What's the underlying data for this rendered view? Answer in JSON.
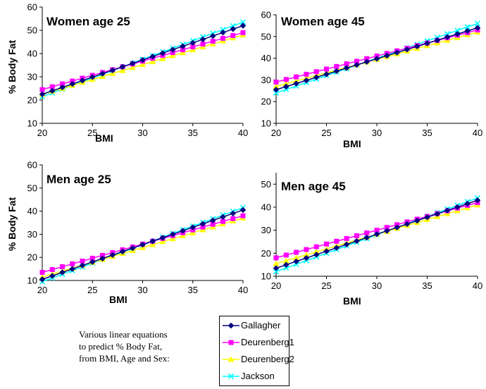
{
  "chart_data": {
    "type": "line",
    "ylabel": "% Body Fat",
    "xlabel": "BMI",
    "series_meta": [
      {
        "name": "Gallagher",
        "color": "#000080",
        "marker": "diamond"
      },
      {
        "name": "Deurenberg1",
        "color": "#ff00ff",
        "marker": "square"
      },
      {
        "name": "Deurenberg2",
        "color": "#ffff00",
        "marker": "triangle"
      },
      {
        "name": "Jackson",
        "color": "#00ffff",
        "marker": "x"
      }
    ],
    "legend": {
      "placement": "bottom-center"
    },
    "grid": false,
    "panels": [
      {
        "title": "Women age 25",
        "xlabel": "BMI",
        "ylabel": "% Body Fat",
        "xlim": [
          20,
          40
        ],
        "ylim": [
          10,
          60
        ],
        "xticks": [
          20,
          25,
          30,
          35,
          40
        ],
        "yticks": [
          10,
          20,
          30,
          40,
          50,
          60
        ],
        "series": [
          {
            "name": "Gallagher",
            "x": [
              20,
              40
            ],
            "y": [
              22.5,
              52
            ]
          },
          {
            "name": "Deurenberg1",
            "x": [
              20,
              40
            ],
            "y": [
              24.5,
              49
            ]
          },
          {
            "name": "Deurenberg2",
            "x": [
              20,
              40
            ],
            "y": [
              22.5,
              48
            ]
          },
          {
            "name": "Jackson",
            "x": [
              20,
              40
            ],
            "y": [
              21.5,
              53.5
            ]
          }
        ]
      },
      {
        "title": "Women age 45",
        "xlabel": "BMI",
        "ylabel": "",
        "xlim": [
          20,
          40
        ],
        "ylim": [
          10,
          60
        ],
        "xticks": [
          20,
          25,
          30,
          35,
          40
        ],
        "yticks": [
          10,
          20,
          30,
          40,
          50,
          60
        ],
        "series": [
          {
            "name": "Gallagher",
            "x": [
              20,
              40
            ],
            "y": [
              25.5,
              54
            ]
          },
          {
            "name": "Deurenberg1",
            "x": [
              20,
              40
            ],
            "y": [
              29,
              53
            ]
          },
          {
            "name": "Deurenberg2",
            "x": [
              20,
              40
            ],
            "y": [
              27,
              52
            ]
          },
          {
            "name": "Jackson",
            "x": [
              20,
              40
            ],
            "y": [
              24,
              56
            ]
          }
        ]
      },
      {
        "title": "Men age 25",
        "xlabel": "BMI",
        "ylabel": "% Body Fat",
        "xlim": [
          20,
          40
        ],
        "ylim": [
          10,
          60
        ],
        "xticks": [
          20,
          25,
          30,
          35,
          40
        ],
        "yticks": [
          10,
          20,
          30,
          40,
          50,
          60
        ],
        "series": [
          {
            "name": "Gallagher",
            "x": [
              20,
              40
            ],
            "y": [
              10.5,
              40.5
            ]
          },
          {
            "name": "Deurenberg1",
            "x": [
              20,
              40
            ],
            "y": [
              13.5,
              38
            ]
          },
          {
            "name": "Deurenberg2",
            "x": [
              20,
              40
            ],
            "y": [
              11.5,
              37
            ]
          },
          {
            "name": "Jackson",
            "x": [
              20,
              40
            ],
            "y": [
              9.5,
              41.5
            ]
          }
        ]
      },
      {
        "title": "Men age 45",
        "xlabel": "BMI",
        "ylabel": "",
        "xlim": [
          20,
          40
        ],
        "ylim": [
          10,
          55
        ],
        "xticks": [
          20,
          25,
          30,
          35,
          40
        ],
        "yticks": [
          10,
          20,
          30,
          40,
          50
        ],
        "series": [
          {
            "name": "Gallagher",
            "x": [
              20,
              40
            ],
            "y": [
              13.5,
              43
            ]
          },
          {
            "name": "Deurenberg1",
            "x": [
              20,
              40
            ],
            "y": [
              18,
              42
            ]
          },
          {
            "name": "Deurenberg2",
            "x": [
              20,
              40
            ],
            "y": [
              15.5,
              41
            ]
          },
          {
            "name": "Jackson",
            "x": [
              20,
              40
            ],
            "y": [
              12,
              44
            ]
          }
        ]
      }
    ]
  },
  "caption": {
    "line1": "Various linear equations",
    "line2": "to predict % Body Fat,",
    "line3": "from BMI, Age and Sex:"
  }
}
